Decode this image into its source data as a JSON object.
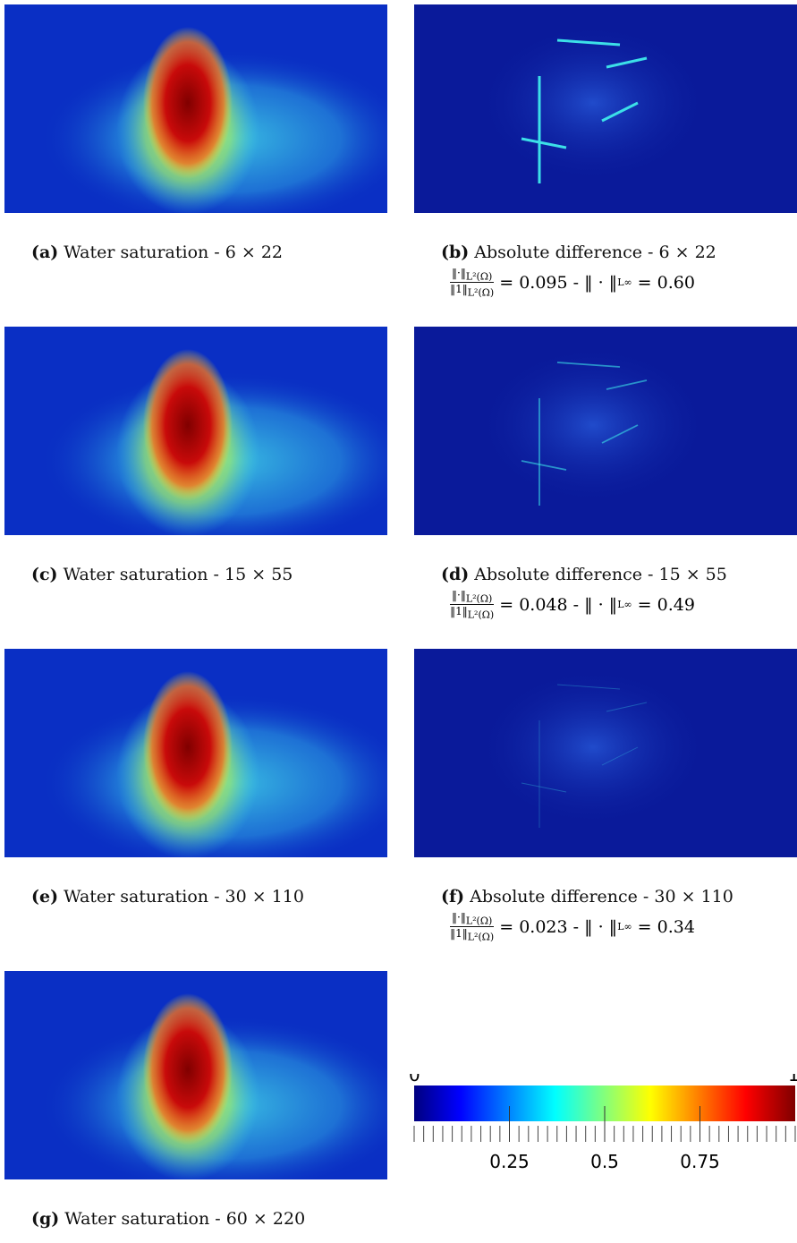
{
  "panels": [
    {
      "label": "(a)",
      "text": "Water saturation - 6 × 22",
      "kind": "saturation"
    },
    {
      "label": "(b)",
      "text": "Absolute difference - 6 × 22",
      "kind": "difference",
      "metric": {
        "num": "‖·‖",
        "sub": "L²(Ω)",
        "den": "‖1‖",
        "l2": "= 0.095 -",
        "linf_norm": "‖ · ‖",
        "linf_sub": "L∞",
        "linf": "= 0.60"
      }
    },
    {
      "label": "(c)",
      "text": "Water saturation - 15 × 55",
      "kind": "saturation"
    },
    {
      "label": "(d)",
      "text": "Absolute difference - 15 × 55",
      "kind": "difference",
      "metric": {
        "num": "‖·‖",
        "sub": "L²(Ω)",
        "den": "‖1‖",
        "l2": "= 0.048 -",
        "linf_norm": "‖ · ‖",
        "linf_sub": "L∞",
        "linf": "= 0.49"
      }
    },
    {
      "label": "(e)",
      "text": "Water saturation - 30 × 110",
      "kind": "saturation"
    },
    {
      "label": "(f)",
      "text": "Absolute difference - 30 × 110",
      "kind": "difference",
      "metric": {
        "num": "‖·‖",
        "sub": "L²(Ω)",
        "den": "‖1‖",
        "l2": "= 0.023 -",
        "linf_norm": "‖ · ‖",
        "linf_sub": "L∞",
        "linf": "= 0.34"
      }
    },
    {
      "label": "(g)",
      "text": "Water saturation - 60 × 220",
      "kind": "saturation"
    }
  ],
  "colorbar": {
    "min": 0,
    "max": 1,
    "ticks": [
      0.25,
      0.5,
      0.75
    ]
  }
}
